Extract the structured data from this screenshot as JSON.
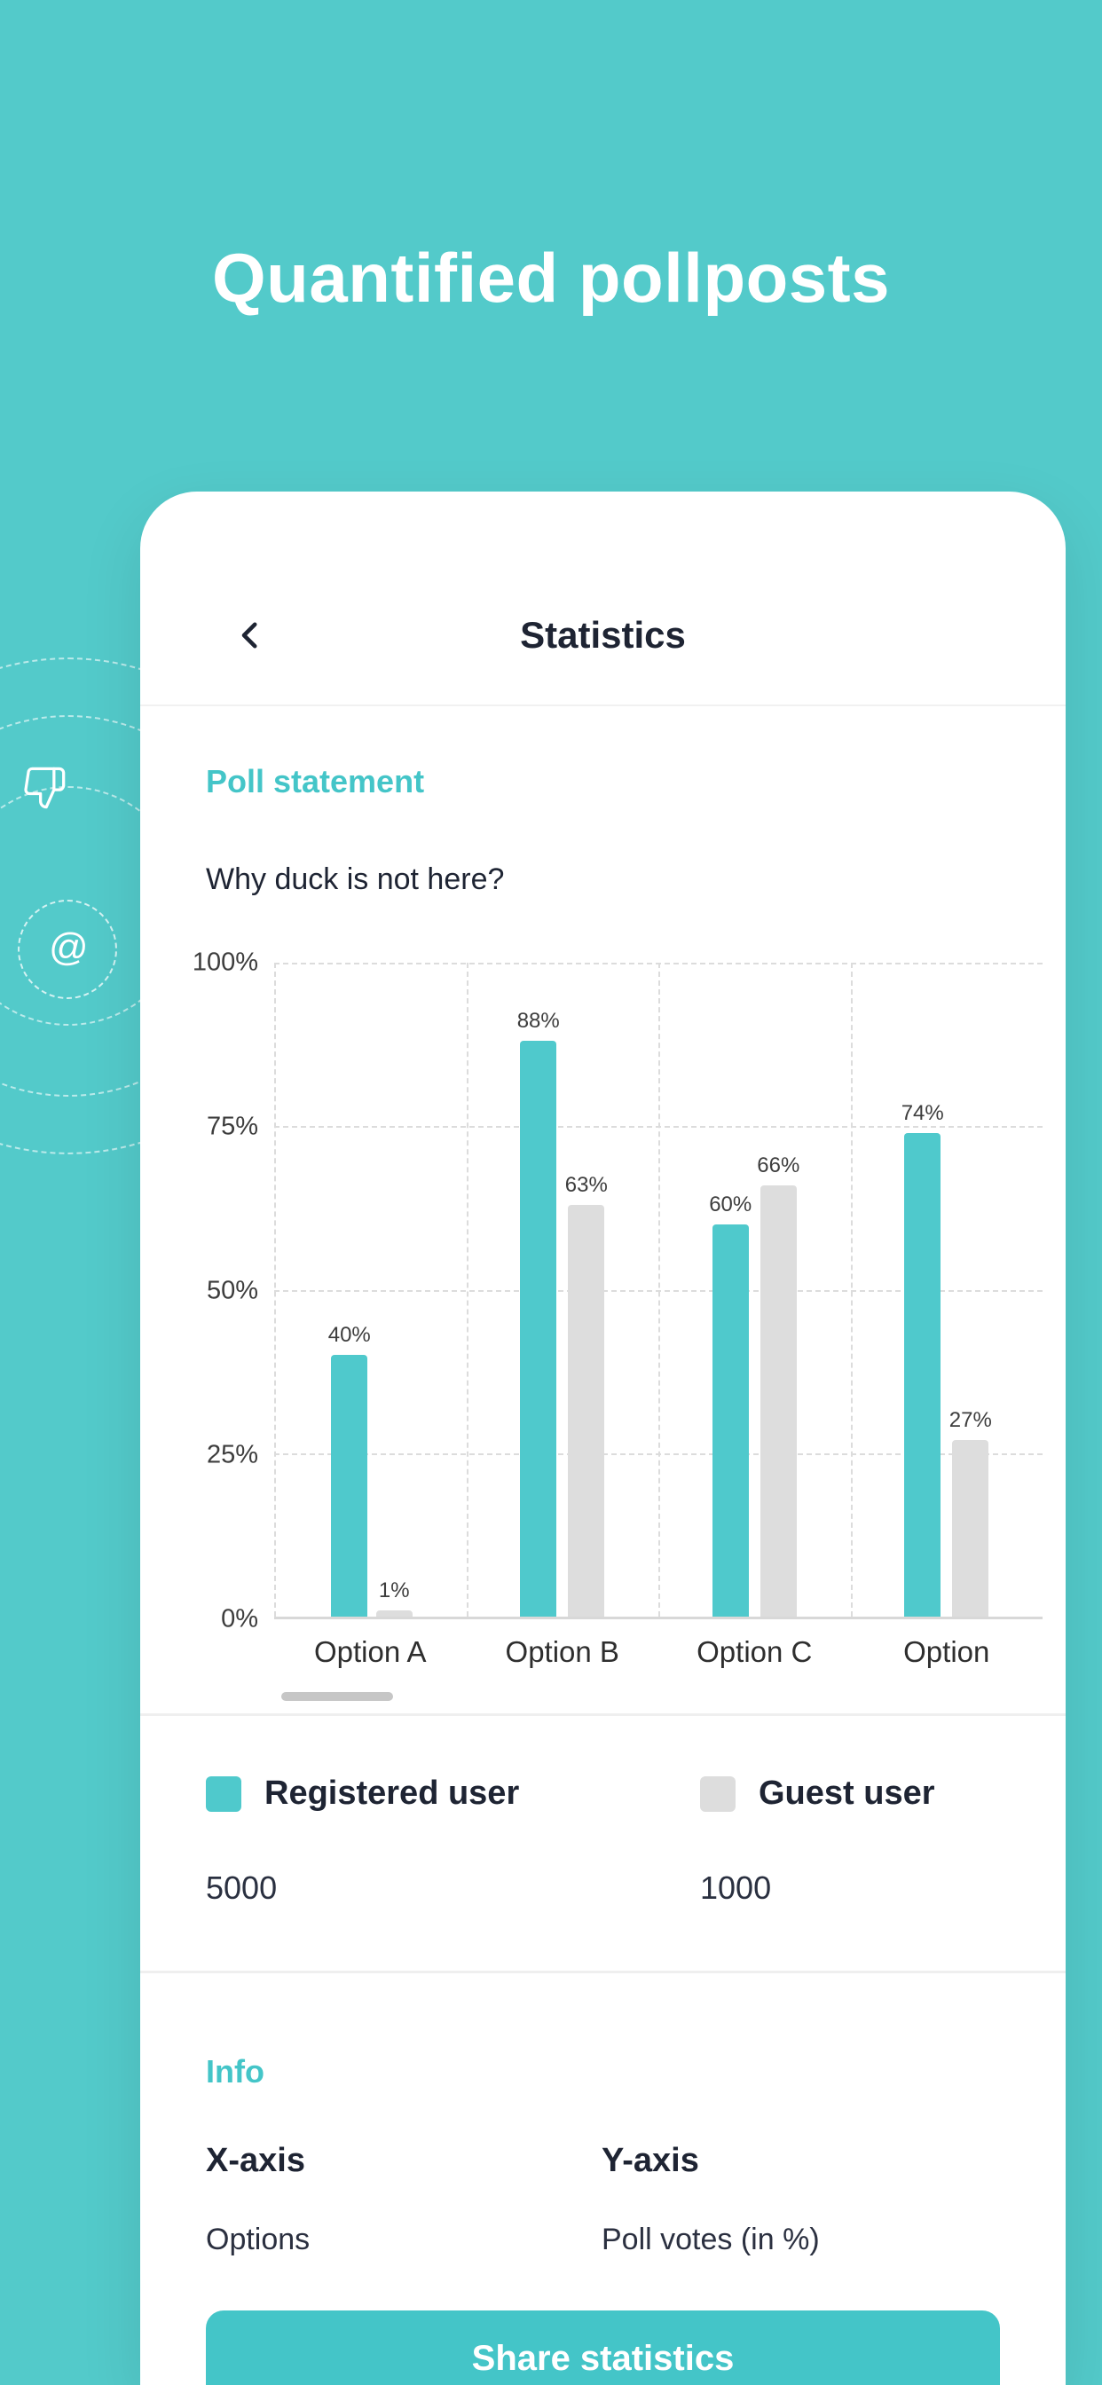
{
  "colors": {
    "background": "#53CACA",
    "accent": "#44C5C8",
    "text_dark": "#1E2433",
    "bar_registered": "#4FC9CC",
    "bar_guest": "#DDDDDD"
  },
  "page": {
    "title": "Quantified pollposts"
  },
  "decor": {
    "at_symbol": "@",
    "icons": [
      "thumbs-down-icon",
      "at-icon"
    ]
  },
  "phone": {
    "header": {
      "title": "Statistics",
      "back_icon": "chevron-left"
    },
    "poll": {
      "section_title": "Poll statement",
      "question": "Why duck is not here?"
    },
    "chart_data": {
      "type": "bar",
      "categories": [
        "Option A",
        "Option B",
        "Option C",
        "Option"
      ],
      "series": [
        {
          "name": "Registered user",
          "color": "#4FC9CC",
          "values": [
            40,
            88,
            60,
            74
          ],
          "total": "5000"
        },
        {
          "name": "Guest user",
          "color": "#DDDDDD",
          "values": [
            1,
            63,
            66,
            27
          ],
          "total": "1000"
        }
      ],
      "y_ticks": [
        "100%",
        "75%",
        "50%",
        "25%",
        "0%"
      ],
      "ylim": [
        0,
        100
      ],
      "grid": "dashed",
      "bar_label_suffix": "%",
      "legend_position": "below",
      "xlabel": "Options",
      "ylabel": "Poll votes (in %)"
    },
    "info": {
      "section_title": "Info",
      "columns": [
        {
          "label": "X-axis",
          "value": "Options"
        },
        {
          "label": "Y-axis",
          "value": "Poll votes (in %)"
        }
      ]
    },
    "share_button_label": "Share statistics"
  }
}
